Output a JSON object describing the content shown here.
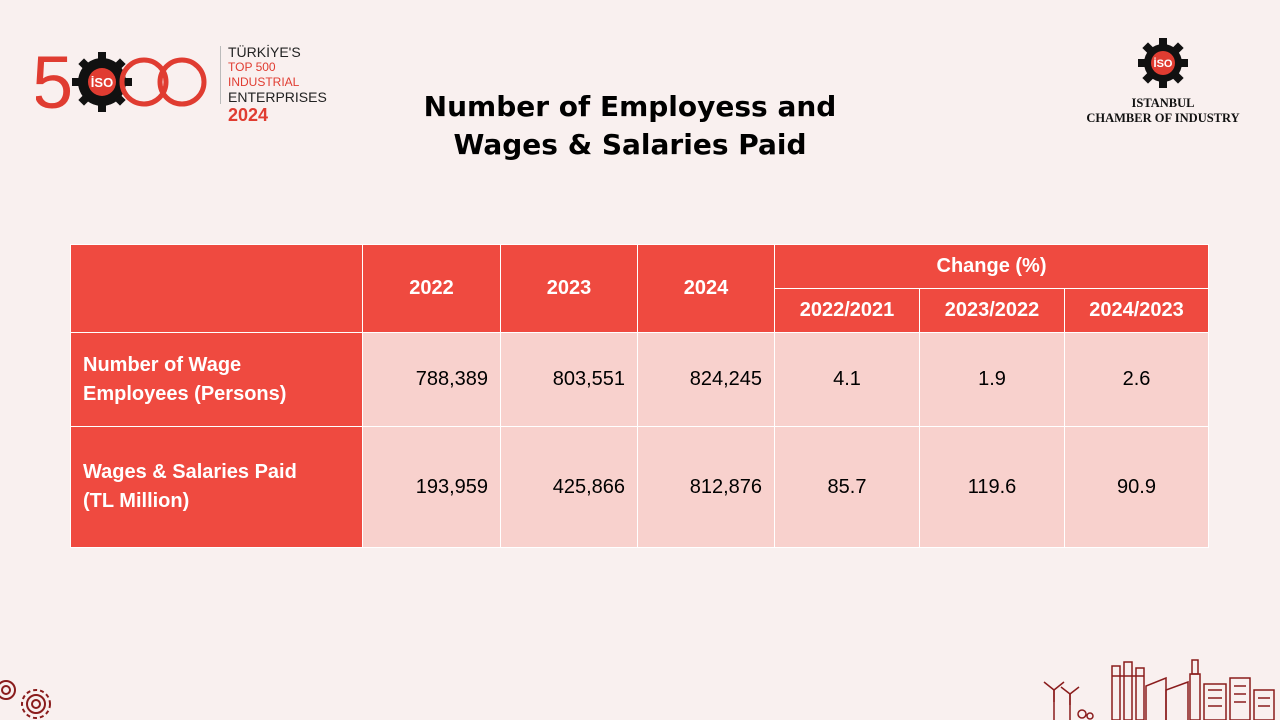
{
  "header": {
    "left_logo": {
      "numeral": "500",
      "badge": "İSO",
      "lines": [
        "TÜRKİYE'S",
        "TOP 500 INDUSTRIAL",
        "ENTERPRISES",
        "2024"
      ]
    },
    "title_lines": [
      "Number of Employess and",
      "Wages & Salaries Paid"
    ],
    "right_logo": {
      "badge": "İSO",
      "lines": [
        "ISTANBUL",
        "CHAMBER OF INDUSTRY"
      ]
    }
  },
  "table": {
    "years": [
      "2022",
      "2023",
      "2024"
    ],
    "change_header": "Change (%)",
    "change_periods": [
      "2022/2021",
      "2023/2022",
      "2024/2023"
    ],
    "rows": [
      {
        "label_lines": [
          "Number of Wage",
          "Employees (Persons)"
        ],
        "values": [
          "788,389",
          "803,551",
          "824,245"
        ],
        "changes": [
          "4.1",
          "1.9",
          "2.6"
        ]
      },
      {
        "label_lines": [
          "Wages & Salaries Paid",
          "(TL Million)"
        ],
        "values": [
          "193,959",
          "425,866",
          "812,876"
        ],
        "changes": [
          "85.7",
          "119.6",
          "90.9"
        ]
      }
    ]
  },
  "colors": {
    "accent": "#ef4a40",
    "cell_fill": "#f8d1cd",
    "background": "#f9f0ef",
    "decor": "#8a1c1c"
  },
  "icons": [
    "gear-logo-icon",
    "gears-icon",
    "factory-skyline-icon"
  ]
}
